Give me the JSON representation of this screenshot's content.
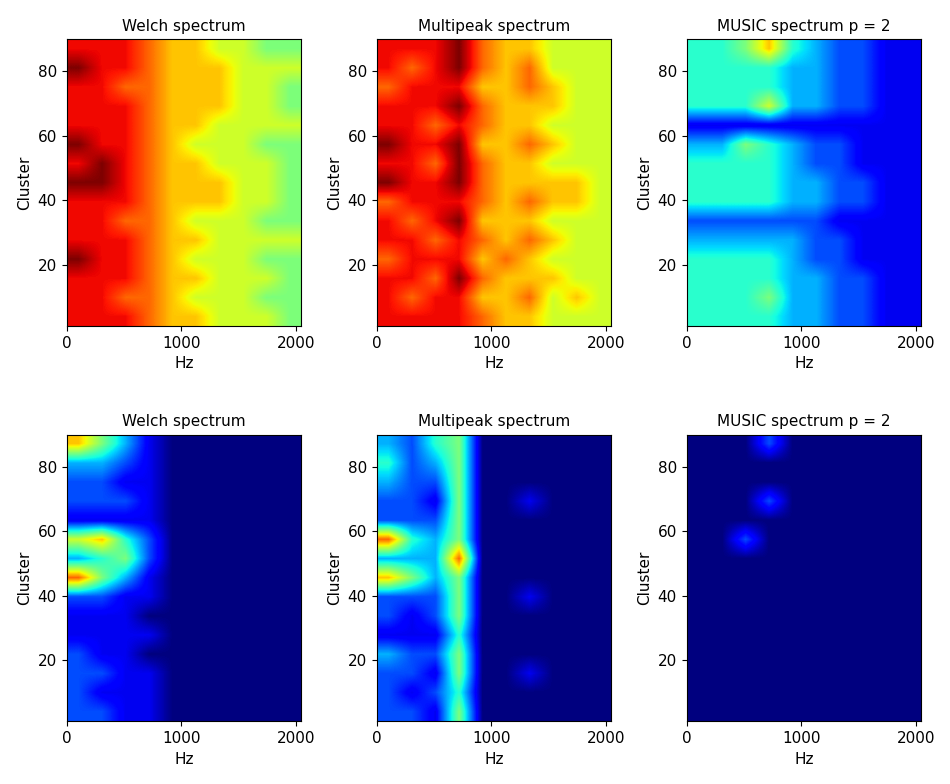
{
  "chart_data": [
    {
      "type": "heatmap",
      "title": "Welch spectrum",
      "x_label": "Hz",
      "y_label": "Cluster",
      "xlim": [
        0,
        2048
      ],
      "xticks": [
        0,
        1000,
        2000
      ],
      "ylim": [
        1,
        90
      ],
      "yticks": [
        20,
        40,
        60,
        80
      ],
      "clim": [
        0,
        10
      ],
      "cells": [
        [
          9,
          9,
          9,
          8,
          7,
          7,
          6,
          6,
          6,
          5
        ],
        [
          9,
          9,
          8,
          8,
          7,
          6,
          6,
          6,
          5,
          5
        ],
        [
          9,
          9,
          9,
          8,
          7,
          7,
          6,
          6,
          6,
          5
        ],
        [
          10,
          9,
          9,
          8,
          7,
          6,
          6,
          6,
          5,
          5
        ],
        [
          9,
          9,
          9,
          8,
          7,
          7,
          6,
          6,
          6,
          6
        ],
        [
          9,
          9,
          8,
          8,
          7,
          6,
          6,
          6,
          5,
          5
        ],
        [
          9,
          9,
          9,
          8,
          7,
          7,
          7,
          6,
          6,
          5
        ],
        [
          10,
          10,
          9,
          8,
          7,
          7,
          7,
          6,
          6,
          5
        ],
        [
          9,
          10,
          9,
          8,
          7,
          7,
          6,
          6,
          6,
          5
        ],
        [
          10,
          9,
          9,
          8,
          7,
          6,
          6,
          6,
          5,
          5
        ],
        [
          9,
          9,
          9,
          8,
          7,
          7,
          6,
          6,
          6,
          6
        ],
        [
          9,
          9,
          9,
          8,
          7,
          7,
          7,
          6,
          6,
          5
        ],
        [
          9,
          9,
          8,
          8,
          7,
          7,
          7,
          6,
          6,
          5
        ],
        [
          10,
          9,
          9,
          8,
          7,
          7,
          7,
          6,
          6,
          6
        ],
        [
          9,
          9,
          9,
          8,
          7,
          7,
          6,
          6,
          5,
          5
        ]
      ]
    },
    {
      "type": "heatmap",
      "title": "Multipeak spectrum",
      "x_label": "Hz",
      "y_label": "Cluster",
      "xlim": [
        0,
        2048
      ],
      "xticks": [
        0,
        1000,
        2000
      ],
      "ylim": [
        1,
        90
      ],
      "yticks": [
        20,
        40,
        60,
        80
      ],
      "clim": [
        0,
        10
      ],
      "cells": [
        [
          9,
          9,
          9,
          9,
          8,
          7,
          7,
          6,
          6,
          6
        ],
        [
          9,
          8,
          9,
          9,
          7,
          7,
          8,
          6,
          7,
          6
        ],
        [
          9,
          9,
          8,
          10,
          8,
          7,
          7,
          7,
          6,
          6
        ],
        [
          8,
          9,
          9,
          9,
          7,
          8,
          7,
          6,
          6,
          6
        ],
        [
          9,
          9,
          8,
          9,
          8,
          7,
          8,
          7,
          6,
          6
        ],
        [
          9,
          8,
          9,
          10,
          7,
          7,
          7,
          6,
          6,
          6
        ],
        [
          8,
          9,
          9,
          9,
          8,
          7,
          8,
          7,
          7,
          6
        ],
        [
          10,
          9,
          9,
          10,
          8,
          7,
          7,
          7,
          7,
          6
        ],
        [
          9,
          9,
          8,
          10,
          8,
          7,
          7,
          6,
          6,
          6
        ],
        [
          10,
          9,
          9,
          10,
          7,
          7,
          8,
          7,
          6,
          6
        ],
        [
          9,
          9,
          8,
          9,
          8,
          7,
          7,
          6,
          6,
          6
        ],
        [
          9,
          9,
          9,
          10,
          8,
          7,
          7,
          7,
          6,
          6
        ],
        [
          8,
          9,
          9,
          9,
          7,
          7,
          8,
          7,
          6,
          6
        ],
        [
          9,
          8,
          9,
          10,
          8,
          7,
          8,
          6,
          6,
          6
        ],
        [
          9,
          9,
          9,
          10,
          8,
          7,
          7,
          6,
          6,
          6
        ]
      ]
    },
    {
      "type": "heatmap",
      "title": "MUSIC spectrum p = 2",
      "x_label": "Hz",
      "y_label": "Cluster",
      "xlim": [
        0,
        2048
      ],
      "xticks": [
        0,
        1000,
        2000
      ],
      "ylim": [
        1,
        90
      ],
      "yticks": [
        20,
        40,
        60,
        80
      ],
      "clim": [
        0,
        10
      ],
      "cells": [
        [
          4,
          4,
          4,
          4,
          3,
          3,
          2,
          2,
          1,
          1
        ],
        [
          4,
          4,
          4,
          5,
          3,
          3,
          2,
          2,
          1,
          1
        ],
        [
          4,
          4,
          4,
          4,
          3,
          3,
          2,
          2,
          1,
          1
        ],
        [
          4,
          4,
          4,
          4,
          3,
          2,
          2,
          1,
          1,
          1
        ],
        [
          3,
          3,
          3,
          3,
          3,
          2,
          2,
          1,
          1,
          1
        ],
        [
          2,
          2,
          2,
          2,
          2,
          2,
          1,
          1,
          1,
          1
        ],
        [
          4,
          4,
          4,
          4,
          3,
          3,
          2,
          2,
          1,
          1
        ],
        [
          4,
          4,
          4,
          4,
          3,
          3,
          2,
          2,
          1,
          1
        ],
        [
          4,
          4,
          4,
          4,
          3,
          2,
          2,
          1,
          1,
          1
        ],
        [
          3,
          3,
          5,
          4,
          3,
          2,
          2,
          1,
          1,
          1
        ],
        [
          1,
          1,
          1,
          1,
          1,
          1,
          1,
          1,
          1,
          1
        ],
        [
          4,
          4,
          4,
          6,
          3,
          3,
          2,
          2,
          1,
          1
        ],
        [
          4,
          4,
          4,
          4,
          3,
          3,
          2,
          2,
          1,
          1
        ],
        [
          4,
          4,
          4,
          4,
          3,
          3,
          2,
          2,
          1,
          1
        ],
        [
          4,
          4,
          5,
          7,
          4,
          3,
          2,
          2,
          1,
          1
        ]
      ]
    },
    {
      "type": "heatmap",
      "title": "Welch spectrum",
      "x_label": "Hz",
      "y_label": "Cluster",
      "xlim": [
        0,
        2048
      ],
      "xticks": [
        0,
        1000,
        2000
      ],
      "ylim": [
        1,
        90
      ],
      "yticks": [
        20,
        40,
        60,
        80
      ],
      "clim": [
        0,
        10
      ],
      "cells": [
        [
          2,
          2,
          1,
          1,
          0,
          0,
          0,
          0,
          0,
          0
        ],
        [
          2,
          1,
          1,
          1,
          0,
          0,
          0,
          0,
          0,
          0
        ],
        [
          2,
          2,
          1,
          1,
          0,
          0,
          0,
          0,
          0,
          0
        ],
        [
          2,
          1,
          1,
          0,
          0,
          0,
          0,
          0,
          0,
          0
        ],
        [
          1,
          1,
          1,
          1,
          0,
          0,
          0,
          0,
          0,
          0
        ],
        [
          1,
          1,
          1,
          0,
          0,
          0,
          0,
          0,
          0,
          0
        ],
        [
          2,
          2,
          1,
          1,
          0,
          0,
          0,
          0,
          0,
          0
        ],
        [
          8,
          5,
          3,
          1,
          0,
          0,
          0,
          0,
          0,
          0
        ],
        [
          3,
          4,
          5,
          2,
          0,
          0,
          0,
          0,
          0,
          0
        ],
        [
          6,
          7,
          4,
          2,
          0,
          0,
          0,
          0,
          0,
          0
        ],
        [
          1,
          1,
          1,
          1,
          0,
          0,
          0,
          0,
          0,
          0
        ],
        [
          2,
          2,
          2,
          1,
          0,
          0,
          0,
          0,
          0,
          0
        ],
        [
          2,
          2,
          1,
          1,
          0,
          0,
          0,
          0,
          0,
          0
        ],
        [
          3,
          3,
          2,
          1,
          0,
          0,
          0,
          0,
          0,
          0
        ],
        [
          7,
          5,
          3,
          1,
          0,
          0,
          0,
          0,
          0,
          0
        ]
      ]
    },
    {
      "type": "heatmap",
      "title": "Multipeak spectrum",
      "x_label": "Hz",
      "y_label": "Cluster",
      "xlim": [
        0,
        2048
      ],
      "xticks": [
        0,
        1000,
        2000
      ],
      "ylim": [
        1,
        90
      ],
      "yticks": [
        20,
        40,
        60,
        80
      ],
      "clim": [
        0,
        10
      ],
      "cells": [
        [
          2,
          2,
          1,
          5,
          0,
          0,
          0,
          0,
          0,
          0
        ],
        [
          2,
          1,
          2,
          4,
          0,
          0,
          0,
          0,
          0,
          0
        ],
        [
          2,
          2,
          1,
          5,
          0,
          0,
          1,
          0,
          0,
          0
        ],
        [
          3,
          2,
          2,
          5,
          0,
          0,
          0,
          0,
          0,
          0
        ],
        [
          1,
          1,
          1,
          4,
          0,
          0,
          0,
          0,
          0,
          0
        ],
        [
          2,
          1,
          2,
          5,
          0,
          0,
          0,
          0,
          0,
          0
        ],
        [
          2,
          2,
          2,
          5,
          0,
          0,
          1,
          0,
          0,
          0
        ],
        [
          7,
          5,
          3,
          5,
          0,
          0,
          0,
          0,
          0,
          0
        ],
        [
          3,
          3,
          3,
          8,
          0,
          0,
          0,
          0,
          0,
          0
        ],
        [
          8,
          4,
          3,
          5,
          0,
          0,
          0,
          0,
          0,
          0
        ],
        [
          2,
          2,
          2,
          5,
          0,
          0,
          0,
          0,
          0,
          0
        ],
        [
          2,
          2,
          1,
          5,
          0,
          0,
          1,
          0,
          0,
          0
        ],
        [
          3,
          2,
          2,
          5,
          0,
          0,
          0,
          0,
          0,
          0
        ],
        [
          4,
          2,
          3,
          5,
          0,
          0,
          0,
          0,
          0,
          0
        ],
        [
          3,
          2,
          4,
          5,
          0,
          0,
          0,
          0,
          0,
          0
        ]
      ]
    },
    {
      "type": "heatmap",
      "title": "MUSIC spectrum p = 2",
      "x_label": "Hz",
      "y_label": "Cluster",
      "xlim": [
        0,
        2048
      ],
      "xticks": [
        0,
        1000,
        2000
      ],
      "ylim": [
        1,
        90
      ],
      "yticks": [
        20,
        40,
        60,
        80
      ],
      "clim": [
        0,
        10
      ],
      "cells": [
        [
          0,
          0,
          0,
          0,
          0,
          0,
          0,
          0,
          0,
          0
        ],
        [
          0,
          0,
          0,
          0,
          0,
          0,
          0,
          0,
          0,
          0
        ],
        [
          0,
          0,
          0,
          0,
          0,
          0,
          0,
          0,
          0,
          0
        ],
        [
          0,
          0,
          0,
          0,
          0,
          0,
          0,
          0,
          0,
          0
        ],
        [
          0,
          0,
          0,
          0,
          0,
          0,
          0,
          0,
          0,
          0
        ],
        [
          0,
          0,
          0,
          0,
          0,
          0,
          0,
          0,
          0,
          0
        ],
        [
          0,
          0,
          0,
          0,
          0,
          0,
          0,
          0,
          0,
          0
        ],
        [
          0,
          0,
          0,
          0,
          0,
          0,
          0,
          0,
          0,
          0
        ],
        [
          0,
          0,
          0,
          0,
          0,
          0,
          0,
          0,
          0,
          0
        ],
        [
          0,
          0,
          2,
          0,
          0,
          0,
          0,
          0,
          0,
          0
        ],
        [
          0,
          0,
          0,
          0,
          0,
          0,
          0,
          0,
          0,
          0
        ],
        [
          0,
          0,
          0,
          2,
          0,
          0,
          0,
          0,
          0,
          0
        ],
        [
          0,
          0,
          0,
          0,
          0,
          0,
          0,
          0,
          0,
          0
        ],
        [
          0,
          0,
          0,
          0,
          0,
          0,
          0,
          0,
          0,
          0
        ],
        [
          0,
          0,
          0,
          2,
          0,
          0,
          0,
          0,
          0,
          0
        ]
      ]
    }
  ]
}
